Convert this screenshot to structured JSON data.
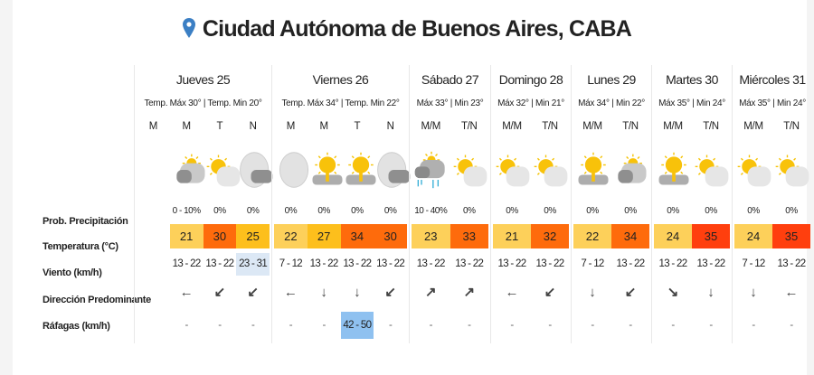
{
  "title": "Ciudad Autónoma de Buenos Aires, CABA",
  "icon_color": "#3b7fc4",
  "row_labels": {
    "precip": "Prob. Precipitación",
    "temp": "Temperatura (°C)",
    "wind": "Viento (km/h)",
    "direction": "Dirección Predominante",
    "gusts": "Ráfagas (km/h)"
  },
  "colors": {
    "warm": "#fdd05a",
    "hot": "#fdbf1c",
    "very_hot": "#fe6b0c",
    "extreme": "#ff3f0e",
    "wind_highlight": "#dce8f5",
    "gust_highlight": "#8fc1f0"
  },
  "days": [
    {
      "name": "Jueves 25",
      "temps": "Temp. Máx 30° | Temp. Min 20°",
      "slots": [
        {
          "period": "M"
        },
        {
          "period": "M",
          "icon": "partly-cloudy-sun-dark",
          "precip": "0 - 10%",
          "temp": "21",
          "level": "warm",
          "wind": "13 - 22",
          "dir": "west",
          "gust": "-"
        },
        {
          "period": "T",
          "icon": "sun-cloud",
          "precip": "0%",
          "temp": "30",
          "level": "very_hot",
          "wind": "13 - 22",
          "dir": "southwest",
          "gust": "-"
        },
        {
          "period": "N",
          "icon": "moon-cloud",
          "precip": "0%",
          "temp": "25",
          "level": "hot",
          "wind": "23 - 31",
          "wind_highlight": true,
          "dir": "southwest",
          "gust": "-"
        }
      ]
    },
    {
      "name": "Viernes 26",
      "temps": "Temp. Máx 34° | Temp. Min 22°",
      "slots": [
        {
          "period": "M",
          "icon": "moon",
          "precip": "0%",
          "temp": "22",
          "level": "warm",
          "wind": "7 - 12",
          "dir": "west",
          "gust": "-"
        },
        {
          "period": "M",
          "icon": "sun-dark-cloud",
          "precip": "0%",
          "temp": "27",
          "level": "hot",
          "wind": "13 - 22",
          "dir": "south",
          "gust": "-"
        },
        {
          "period": "T",
          "icon": "sun-dark-cloud",
          "precip": "0%",
          "temp": "34",
          "level": "very_hot",
          "wind": "13 - 22",
          "dir": "south",
          "gust": "42 - 50",
          "gust_highlight": true
        },
        {
          "period": "N",
          "icon": "moon-cloud",
          "precip": "0%",
          "temp": "30",
          "level": "very_hot",
          "wind": "13 - 22",
          "dir": "southwest",
          "gust": "-"
        }
      ]
    },
    {
      "name": "Sábado 27",
      "temps": "Máx 33° | Min 23°",
      "slots": [
        {
          "period": "M/M",
          "icon": "rain",
          "precip": "10 - 40%",
          "temp": "23",
          "level": "warm",
          "wind": "13 - 22",
          "dir": "northeast",
          "gust": "-"
        },
        {
          "period": "T/N",
          "icon": "sun-cloud",
          "precip": "0%",
          "temp": "33",
          "level": "very_hot",
          "wind": "13 - 22",
          "dir": "northeast",
          "gust": "-"
        }
      ]
    },
    {
      "name": "Domingo 28",
      "temps": "Máx 32° | Min 21°",
      "slots": [
        {
          "period": "M/M",
          "icon": "sun-cloud",
          "precip": "0%",
          "temp": "21",
          "level": "warm",
          "wind": "13 - 22",
          "dir": "west",
          "gust": "-"
        },
        {
          "period": "T/N",
          "icon": "sun-cloud",
          "precip": "0%",
          "temp": "32",
          "level": "very_hot",
          "wind": "13 - 22",
          "dir": "southwest",
          "gust": "-"
        }
      ]
    },
    {
      "name": "Lunes 29",
      "temps": "Máx 34° | Min 22°",
      "slots": [
        {
          "period": "M/M",
          "icon": "sun-dark-cloud",
          "precip": "0%",
          "temp": "22",
          "level": "warm",
          "wind": "7 - 12",
          "dir": "south",
          "gust": "-"
        },
        {
          "period": "T/N",
          "icon": "partly-cloudy-sun-dark",
          "precip": "0%",
          "temp": "34",
          "level": "very_hot",
          "wind": "13 - 22",
          "dir": "southwest",
          "gust": "-"
        }
      ]
    },
    {
      "name": "Martes 30",
      "temps": "Máx 35° | Min 24°",
      "slots": [
        {
          "period": "M/M",
          "icon": "sun-dark-cloud",
          "precip": "0%",
          "temp": "24",
          "level": "warm",
          "wind": "13 - 22",
          "dir": "southeast",
          "gust": "-"
        },
        {
          "period": "T/N",
          "icon": "sun-cloud",
          "precip": "0%",
          "temp": "35",
          "level": "extreme",
          "wind": "13 - 22",
          "dir": "south",
          "gust": "-"
        }
      ]
    },
    {
      "name": "Miércoles 31",
      "temps": "Máx 35° | Min 24°",
      "slots": [
        {
          "period": "M/M",
          "icon": "sun-cloud",
          "precip": "0%",
          "temp": "24",
          "level": "warm",
          "wind": "7 - 12",
          "dir": "south",
          "gust": "-"
        },
        {
          "period": "T/N",
          "icon": "sun-cloud",
          "precip": "0%",
          "temp": "35",
          "level": "extreme",
          "wind": "13 - 22",
          "dir": "west",
          "gust": "-"
        }
      ]
    }
  ]
}
